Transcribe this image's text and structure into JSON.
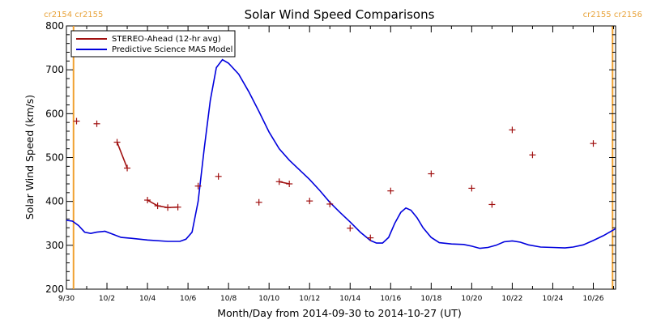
{
  "chart_data": {
    "type": "line",
    "title": "Solar Wind Speed Comparisons",
    "xlabel": "Month/Day from 2014-09-30 to 2014-10-27 (UT)",
    "ylabel": "Solar Wind Speed (km/s)",
    "xlim": [
      0,
      27.1
    ],
    "ylim": [
      200,
      800
    ],
    "yticks": [
      200,
      300,
      400,
      500,
      600,
      700,
      800
    ],
    "xticks": [
      {
        "x": 0,
        "label": "9/30"
      },
      {
        "x": 2,
        "label": "10/2"
      },
      {
        "x": 4,
        "label": "10/4"
      },
      {
        "x": 6,
        "label": "10/6"
      },
      {
        "x": 8,
        "label": "10/8"
      },
      {
        "x": 10,
        "label": "10/10"
      },
      {
        "x": 12,
        "label": "10/12"
      },
      {
        "x": 14,
        "label": "10/14"
      },
      {
        "x": 16,
        "label": "10/16"
      },
      {
        "x": 18,
        "label": "10/18"
      },
      {
        "x": 20,
        "label": "10/20"
      },
      {
        "x": 22,
        "label": "10/22"
      },
      {
        "x": 24,
        "label": "10/24"
      },
      {
        "x": 26,
        "label": "10/26"
      }
    ],
    "legend_position": "top-left",
    "colors": {
      "stereo": "#a01010",
      "model": "#0000dd",
      "carrington": "#f0a030"
    },
    "carrington_markers": [
      {
        "x": 0.35,
        "labels": [
          "cr2154",
          "cr2155"
        ]
      },
      {
        "x": 26.95,
        "labels": [
          "cr2155",
          "cr2156"
        ]
      }
    ],
    "series": [
      {
        "name": "STEREO-Ahead (12-hr avg)",
        "style": "markers+segments",
        "points": [
          [
            0.5,
            583
          ],
          [
            1.5,
            577
          ],
          [
            2.5,
            535
          ],
          [
            3.0,
            476
          ],
          [
            4.0,
            403
          ],
          [
            4.5,
            390
          ],
          [
            5.0,
            386
          ],
          [
            5.5,
            387
          ],
          [
            6.5,
            435
          ],
          [
            7.5,
            457
          ],
          [
            9.5,
            398
          ],
          [
            10.5,
            445
          ],
          [
            11.0,
            440
          ],
          [
            12.0,
            401
          ],
          [
            13.0,
            394
          ],
          [
            14.0,
            339
          ],
          [
            15.0,
            317
          ],
          [
            16.0,
            424
          ],
          [
            18.0,
            463
          ],
          [
            20.0,
            430
          ],
          [
            21.0,
            393
          ],
          [
            22.0,
            563
          ],
          [
            23.0,
            506
          ],
          [
            26.0,
            532
          ]
        ],
        "segments": [
          [
            2,
            3
          ],
          [
            4,
            5
          ],
          [
            5,
            6
          ],
          [
            6,
            7
          ],
          [
            11,
            12
          ]
        ]
      },
      {
        "name": "Predictive Science MAS Model",
        "style": "line",
        "points": [
          [
            0.0,
            357
          ],
          [
            0.3,
            355
          ],
          [
            0.6,
            345
          ],
          [
            0.9,
            330
          ],
          [
            1.2,
            327
          ],
          [
            1.5,
            330
          ],
          [
            1.9,
            332
          ],
          [
            2.3,
            325
          ],
          [
            2.7,
            318
          ],
          [
            3.2,
            316
          ],
          [
            4.0,
            312
          ],
          [
            5.0,
            309
          ],
          [
            5.6,
            309
          ],
          [
            5.9,
            314
          ],
          [
            6.2,
            330
          ],
          [
            6.5,
            400
          ],
          [
            6.8,
            520
          ],
          [
            7.1,
            630
          ],
          [
            7.4,
            705
          ],
          [
            7.7,
            723
          ],
          [
            8.0,
            715
          ],
          [
            8.5,
            690
          ],
          [
            9.0,
            650
          ],
          [
            9.5,
            605
          ],
          [
            10.0,
            558
          ],
          [
            10.5,
            520
          ],
          [
            11.0,
            494
          ],
          [
            11.5,
            472
          ],
          [
            12.0,
            450
          ],
          [
            12.5,
            425
          ],
          [
            13.0,
            398
          ],
          [
            13.5,
            375
          ],
          [
            14.0,
            353
          ],
          [
            14.5,
            330
          ],
          [
            15.0,
            311
          ],
          [
            15.3,
            305
          ],
          [
            15.6,
            305
          ],
          [
            15.9,
            318
          ],
          [
            16.2,
            350
          ],
          [
            16.5,
            375
          ],
          [
            16.75,
            385
          ],
          [
            17.0,
            380
          ],
          [
            17.3,
            363
          ],
          [
            17.6,
            340
          ],
          [
            18.0,
            318
          ],
          [
            18.4,
            306
          ],
          [
            19.0,
            303
          ],
          [
            19.6,
            302
          ],
          [
            20.0,
            298
          ],
          [
            20.4,
            293
          ],
          [
            20.8,
            295
          ],
          [
            21.2,
            300
          ],
          [
            21.6,
            308
          ],
          [
            22.0,
            310
          ],
          [
            22.4,
            307
          ],
          [
            22.8,
            301
          ],
          [
            23.4,
            296
          ],
          [
            24.0,
            295
          ],
          [
            24.6,
            294
          ],
          [
            25.0,
            296
          ],
          [
            25.5,
            301
          ],
          [
            26.0,
            311
          ],
          [
            26.5,
            322
          ],
          [
            27.1,
            338
          ]
        ]
      }
    ]
  }
}
